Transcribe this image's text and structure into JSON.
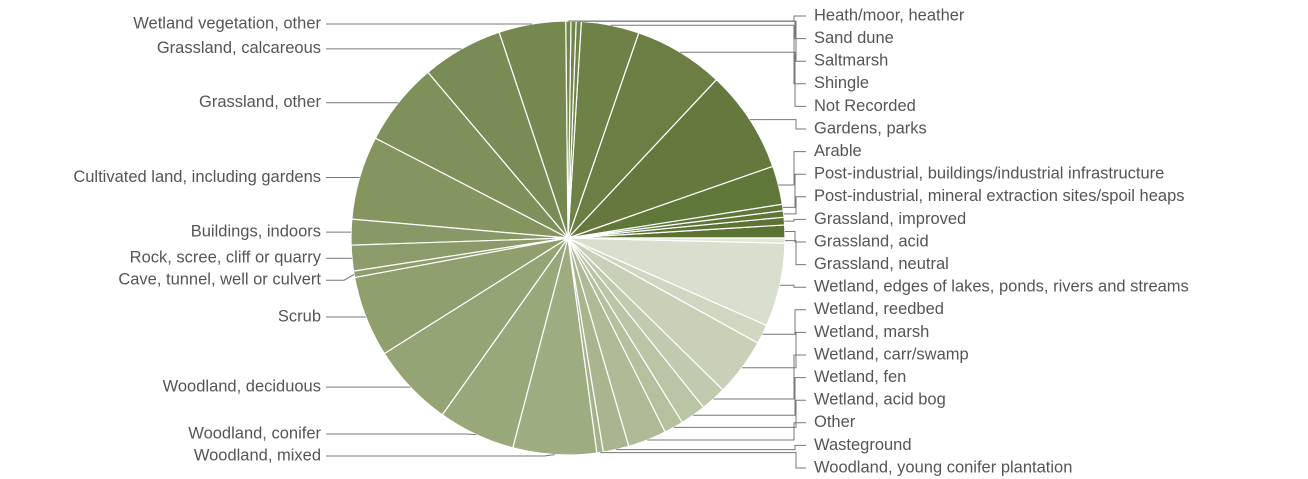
{
  "chart_data": {
    "type": "pie",
    "title": "",
    "slice_stroke": "#ffffff",
    "leader_color": "#777777",
    "label_color": "#555555",
    "slices": [
      {
        "label": "Grassland, acid",
        "value": 1.0,
        "color": "#5a7232"
      },
      {
        "label": "Grassland, improved",
        "value": 0.6,
        "color": "#5c7335"
      },
      {
        "label": "Post-industrial, mineral extraction sites/spoil heaps",
        "value": 0.5,
        "color": "#5e7537"
      },
      {
        "label": "Post-industrial, buildings/industrial infrastructure",
        "value": 0.5,
        "color": "#5f7639"
      },
      {
        "label": "Arable",
        "value": 3.0,
        "color": "#60773a"
      },
      {
        "label": "Gardens, parks",
        "value": 8.0,
        "color": "#65793f"
      },
      {
        "label": "Not Recorded",
        "value": 7.0,
        "color": "#6b7f45"
      },
      {
        "label": "Shingle",
        "value": 4.5,
        "color": "#6e8147"
      },
      {
        "label": "Saltmarsh",
        "value": 0.4,
        "color": "#708349"
      },
      {
        "label": "Sand dune",
        "value": 0.4,
        "color": "#72854b"
      },
      {
        "label": "Heath/moor, heather",
        "value": 0.4,
        "color": "#73864c"
      },
      {
        "label": "Wetland vegetation, other",
        "value": 5.2,
        "color": "#75884f"
      },
      {
        "label": "Grassland, calcareous",
        "value": 6.3,
        "color": "#7a8c55"
      },
      {
        "label": "Grassland, other",
        "value": 6.5,
        "color": "#7f915b"
      },
      {
        "label": "Cultivated land, including gardens",
        "value": 6.5,
        "color": "#849560"
      },
      {
        "label": "Buildings, indoors",
        "value": 2.0,
        "color": "#889866"
      },
      {
        "label": "Rock, scree, cliff or quarry",
        "value": 2.0,
        "color": "#8b9b69"
      },
      {
        "label": "Cave, tunnel, well or culvert",
        "value": 0.5,
        "color": "#8d9d6b"
      },
      {
        "label": "Scrub",
        "value": 6.3,
        "color": "#8fa06e"
      },
      {
        "label": "Woodland, deciduous",
        "value": 6.5,
        "color": "#94a475"
      },
      {
        "label": "Woodland, conifer",
        "value": 6.0,
        "color": "#99a87b"
      },
      {
        "label": "Woodland, mixed",
        "value": 6.5,
        "color": "#9eac82"
      },
      {
        "label": "Woodland, young conifer plantation",
        "value": 0.5,
        "color": "#a4b18a"
      },
      {
        "label": "Wasteground",
        "value": 2.0,
        "color": "#a8b58e"
      },
      {
        "label": "Other",
        "value": 3.0,
        "color": "#aebb96"
      },
      {
        "label": "Wetland, acid bog",
        "value": 1.5,
        "color": "#b4c09e"
      },
      {
        "label": "Wetland, fen",
        "value": 2.0,
        "color": "#bac5a6"
      },
      {
        "label": "Wetland, carr/swamp",
        "value": 2.0,
        "color": "#c0caae"
      },
      {
        "label": "Wetland, marsh",
        "value": 4.5,
        "color": "#c8d1b8"
      },
      {
        "label": "Wetland, reedbed",
        "value": 1.5,
        "color": "#cfd7c1"
      },
      {
        "label": "Wetland, edges of lakes, ponds, rivers and streams",
        "value": 6.5,
        "color": "#d8dfcc"
      },
      {
        "label": "Grassland, neutral",
        "value": 0.4,
        "color": "#e0e6d6"
      }
    ]
  }
}
